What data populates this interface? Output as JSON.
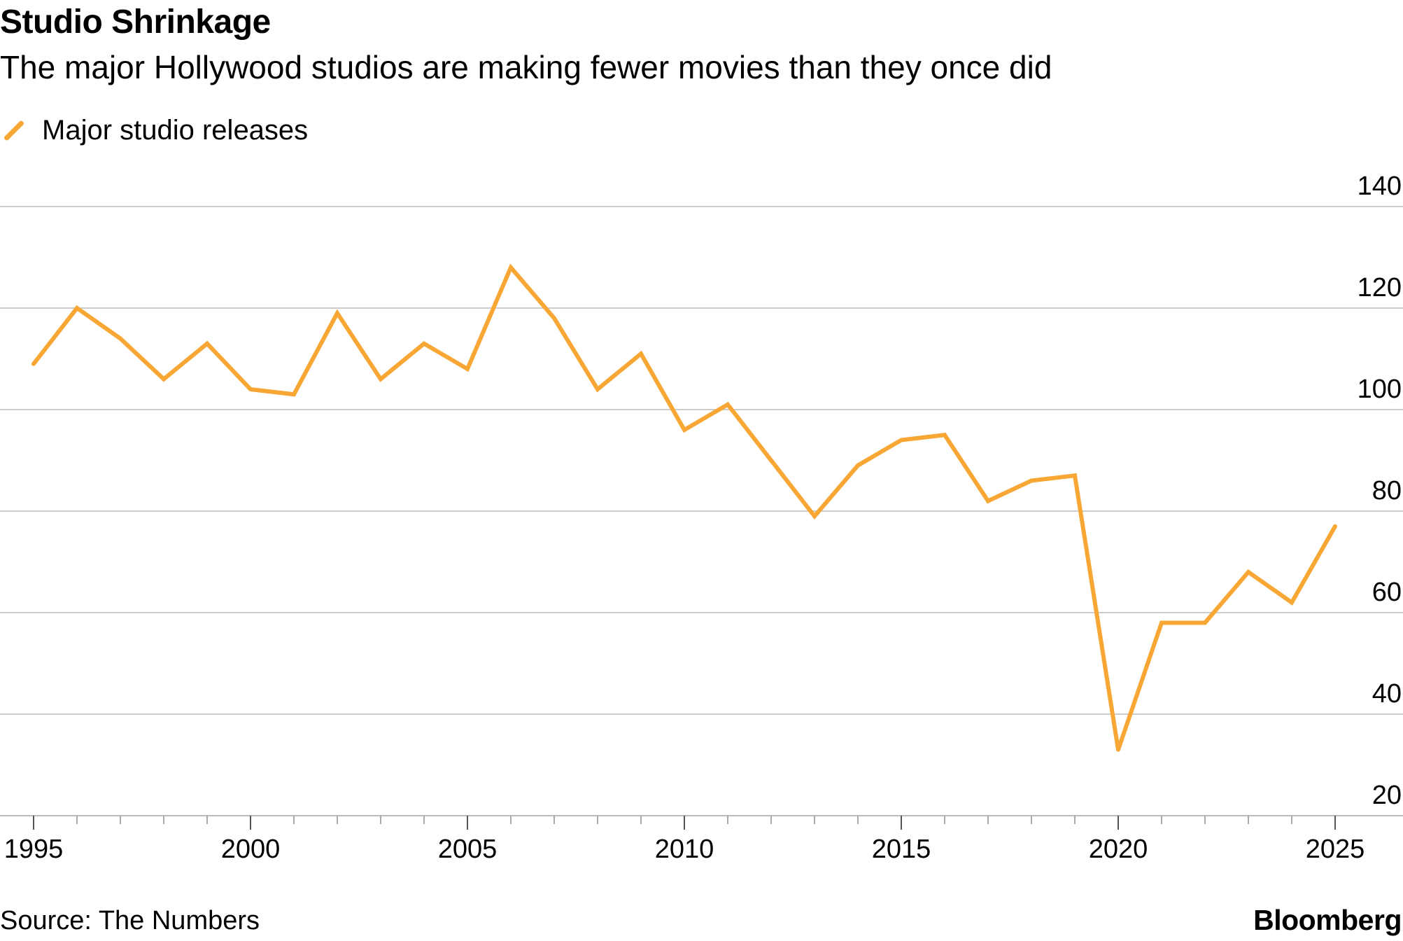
{
  "chart_data": {
    "type": "line",
    "title": "Studio Shrinkage",
    "subtitle": "The major Hollywood studios are making fewer movies than they once did",
    "xlabel": "",
    "ylabel": "",
    "x": [
      1995,
      1996,
      1997,
      1998,
      1999,
      2000,
      2001,
      2002,
      2003,
      2004,
      2005,
      2006,
      2007,
      2008,
      2009,
      2010,
      2011,
      2012,
      2013,
      2014,
      2015,
      2016,
      2017,
      2018,
      2019,
      2020,
      2021,
      2022,
      2023,
      2024,
      2025
    ],
    "series": [
      {
        "name": "Major studio releases",
        "color": "#f8a634",
        "values": [
          109,
          120,
          114,
          106,
          113,
          104,
          103,
          119,
          106,
          113,
          108,
          128,
          118,
          104,
          111,
          96,
          101,
          90,
          79,
          89,
          94,
          95,
          82,
          86,
          87,
          33,
          58,
          58,
          68,
          62,
          77
        ]
      }
    ],
    "xlim": [
      1995,
      2025
    ],
    "ylim": [
      20,
      140
    ],
    "yticks": [
      20,
      40,
      60,
      80,
      100,
      120,
      140
    ],
    "xticks": [
      1995,
      2000,
      2005,
      2010,
      2015,
      2020,
      2025
    ],
    "grid": true,
    "legend": "top-left"
  },
  "legend_label": "Major studio releases",
  "source": "Source: The Numbers",
  "brand": "Bloomberg"
}
